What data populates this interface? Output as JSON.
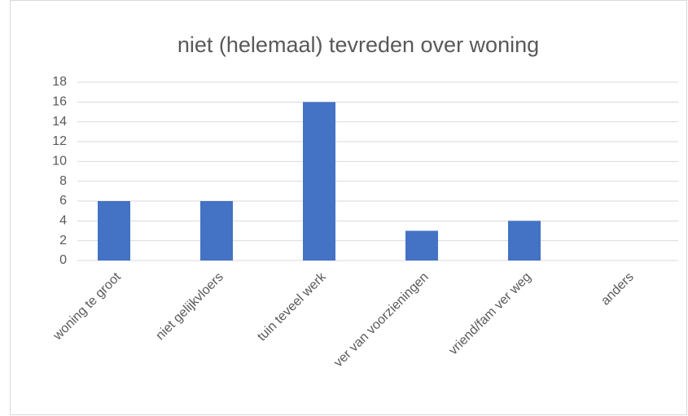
{
  "chart_data": {
    "type": "bar",
    "title": "niet (helemaal) tevreden over woning",
    "categories": [
      "woning te groot",
      "niet gelijkvloers",
      "tuin teveel werk",
      "ver van voorzieningen",
      "vriend/fam ver weg",
      "anders"
    ],
    "values": [
      6,
      6,
      16,
      3,
      4,
      0
    ],
    "color": "#4472c4",
    "ylim": [
      0,
      18
    ],
    "yticks": [
      0,
      2,
      4,
      6,
      8,
      10,
      12,
      14,
      16,
      18
    ],
    "grid": true
  }
}
